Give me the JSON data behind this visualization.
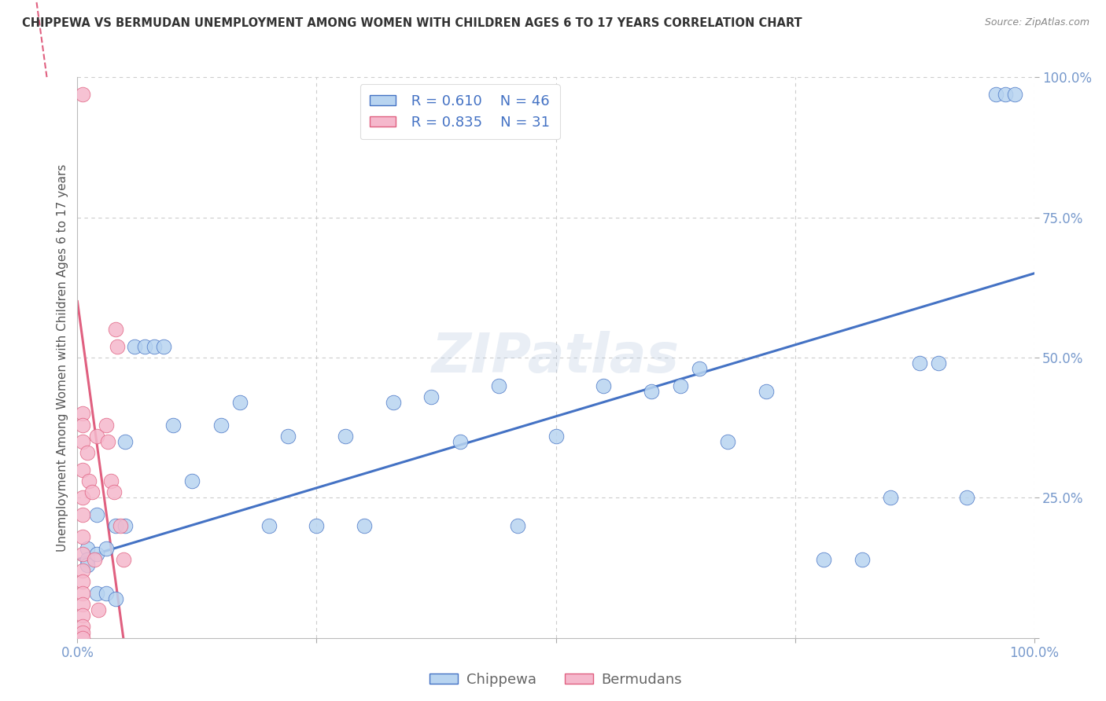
{
  "title": "CHIPPEWA VS BERMUDAN UNEMPLOYMENT AMONG WOMEN WITH CHILDREN AGES 6 TO 17 YEARS CORRELATION CHART",
  "source": "Source: ZipAtlas.com",
  "ylabel": "Unemployment Among Women with Children Ages 6 to 17 years",
  "legend1_R": "0.610",
  "legend1_N": "46",
  "legend2_R": "0.835",
  "legend2_N": "31",
  "chippewa_color": "#b8d4f0",
  "bermudans_color": "#f5b8cc",
  "chippewa_line_color": "#4472c4",
  "bermudans_line_color": "#e06080",
  "watermark": "ZIPatlas",
  "chippewa_x": [
    0.01,
    0.01,
    0.01,
    0.02,
    0.02,
    0.02,
    0.03,
    0.03,
    0.04,
    0.04,
    0.05,
    0.05,
    0.06,
    0.07,
    0.08,
    0.09,
    0.1,
    0.12,
    0.15,
    0.17,
    0.2,
    0.22,
    0.25,
    0.28,
    0.3,
    0.33,
    0.37,
    0.4,
    0.44,
    0.46,
    0.5,
    0.55,
    0.6,
    0.63,
    0.65,
    0.68,
    0.72,
    0.78,
    0.82,
    0.85,
    0.88,
    0.9,
    0.93,
    0.96,
    0.97,
    0.98
  ],
  "chippewa_y": [
    0.16,
    0.14,
    0.13,
    0.22,
    0.15,
    0.08,
    0.16,
    0.08,
    0.2,
    0.07,
    0.2,
    0.35,
    0.52,
    0.52,
    0.52,
    0.52,
    0.38,
    0.28,
    0.38,
    0.42,
    0.2,
    0.36,
    0.2,
    0.36,
    0.2,
    0.42,
    0.43,
    0.35,
    0.45,
    0.2,
    0.36,
    0.45,
    0.44,
    0.45,
    0.48,
    0.35,
    0.44,
    0.14,
    0.14,
    0.25,
    0.49,
    0.49,
    0.25,
    0.97,
    0.97,
    0.97
  ],
  "bermudans_x": [
    0.005,
    0.005,
    0.005,
    0.005,
    0.005,
    0.005,
    0.005,
    0.005,
    0.005,
    0.005,
    0.005,
    0.005,
    0.005,
    0.005,
    0.005,
    0.005,
    0.005,
    0.01,
    0.012,
    0.015,
    0.018,
    0.02,
    0.022,
    0.03,
    0.032,
    0.035,
    0.038,
    0.04,
    0.042,
    0.045,
    0.048
  ],
  "bermudans_y": [
    0.97,
    0.4,
    0.38,
    0.35,
    0.3,
    0.25,
    0.22,
    0.18,
    0.15,
    0.12,
    0.1,
    0.08,
    0.06,
    0.04,
    0.02,
    0.01,
    0.0,
    0.33,
    0.28,
    0.26,
    0.14,
    0.36,
    0.05,
    0.38,
    0.35,
    0.28,
    0.26,
    0.55,
    0.52,
    0.2,
    0.14
  ],
  "background_color": "#ffffff",
  "grid_color": "#cccccc",
  "xlim": [
    0.0,
    1.0
  ],
  "ylim": [
    0.0,
    1.0
  ],
  "chippewa_line_y0": 0.14,
  "chippewa_line_y1": 0.65,
  "bermudans_line_x0": 0.0,
  "bermudans_line_x1": 0.048,
  "bermudans_line_y0": 0.6,
  "bermudans_line_y1": 0.0
}
